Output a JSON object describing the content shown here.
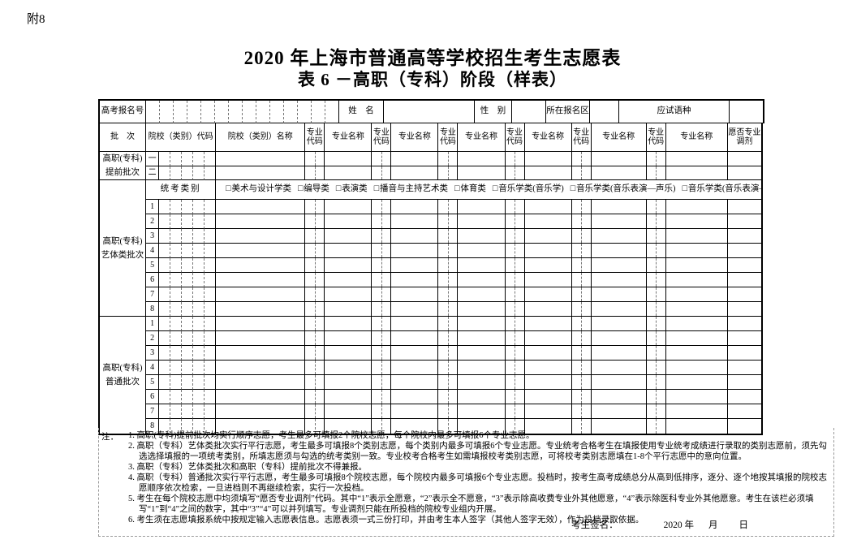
{
  "page": {
    "attachment_label": "附8",
    "title_line1": "2020 年上海市普通高等学校招生考生志愿表",
    "title_line2": "表 6 －高职（专科）阶段（样表）"
  },
  "info_row": {
    "exam_id_label": "高考报名号",
    "exam_id_digit_count": 14,
    "exam_id_value": "",
    "name_label": "姓　名",
    "name_value": "",
    "gender_label": "性　别",
    "gender_value": "",
    "district_label": "所在报名区",
    "district_value": "",
    "language_label": "应试语种",
    "language_value": ""
  },
  "table": {
    "header": {
      "batch": "批　次",
      "college_code": "院校（类别）代码",
      "college_name": "院校（类别）名称",
      "major_code": "专业代码",
      "major_name": "专业名称",
      "adjustment": "愿否专业调剂"
    },
    "major_pair_count": 6,
    "college_code_digits": 5,
    "sections": [
      {
        "id": "advance",
        "label_lines": [
          "高职(专科)",
          "提前批次"
        ],
        "row_labels": [
          "一",
          "二"
        ]
      },
      {
        "id": "arts",
        "label_lines": [
          "高职(专科)",
          "艺体类批次"
        ],
        "row_labels": [
          "1",
          "2",
          "3",
          "4",
          "5",
          "6",
          "7",
          "8"
        ],
        "category": {
          "label": "统考类别",
          "checkbox_glyph": "□",
          "options": [
            "美术与设计学类",
            "编导类",
            "表演类",
            "播音与主持艺术类",
            "体育类",
            "音乐学类(音乐学)",
            "音乐学类(音乐表演—声乐)",
            "音乐学类(音乐表演—器乐)"
          ]
        }
      },
      {
        "id": "regular",
        "label_lines": [
          "高职(专科)",
          "普通批次"
        ],
        "row_labels": [
          "1",
          "2",
          "3",
          "4",
          "5",
          "6",
          "7",
          "8"
        ]
      }
    ]
  },
  "notes": {
    "prefix": "注：",
    "items": [
      "1. 高职(专科)提前批次均实行顺序志愿，考生最多可填报2个院校志愿，每个院校内最多可填报6个专业志愿。",
      "2. 高职（专科）艺体类批次实行平行志愿，考生最多可填报8个类别志愿，每个类别内最多可填报6个专业志愿。专业统考合格考生在填报使用专业统考成绩进行录取的类别志愿前，须先勾选选择填报的一项统考类别，所填志愿须与勾选的统考类别一致。专业校考合格考生如需填报校考类别志愿，可将校考类别志愿填在1-8个平行志愿中的意向位置。",
      "3. 高职（专科）艺体类批次和高职（专科）提前批次不得兼报。",
      "4. 高职（专科）普通批次实行平行志愿，考生最多可填报8个院校志愿，每个院校内最多可填报6个专业志愿。投档时，按考生高考成绩总分从高到低排序，逐分、逐个地按其填报的院校志愿顺序依次检索，一旦进档则不再继续检索，实行一次投档。",
      "5. 考生在每个院校志愿中均须填写“愿否专业调剂”代码。其中“1”表示全愿意，“2”表示全不愿意，“3”表示除高收费专业外其他愿意，“4”表示除医科专业外其他愿意。考生在该栏必须填写“1”到“4”之间的数字，其中“3”“4”可以并列填写。专业调剂只能在所投档的院校专业组内开展。",
      "6. 考生须在志愿填报系统中按规定输入志愿表信息。志愿表须一式三份打印，并由考生本人签字（其他人签字无效），作为投档录取依据。"
    ]
  },
  "signature": {
    "label": "考生签名：",
    "year": "2020 年",
    "month": "月",
    "day": "日"
  }
}
